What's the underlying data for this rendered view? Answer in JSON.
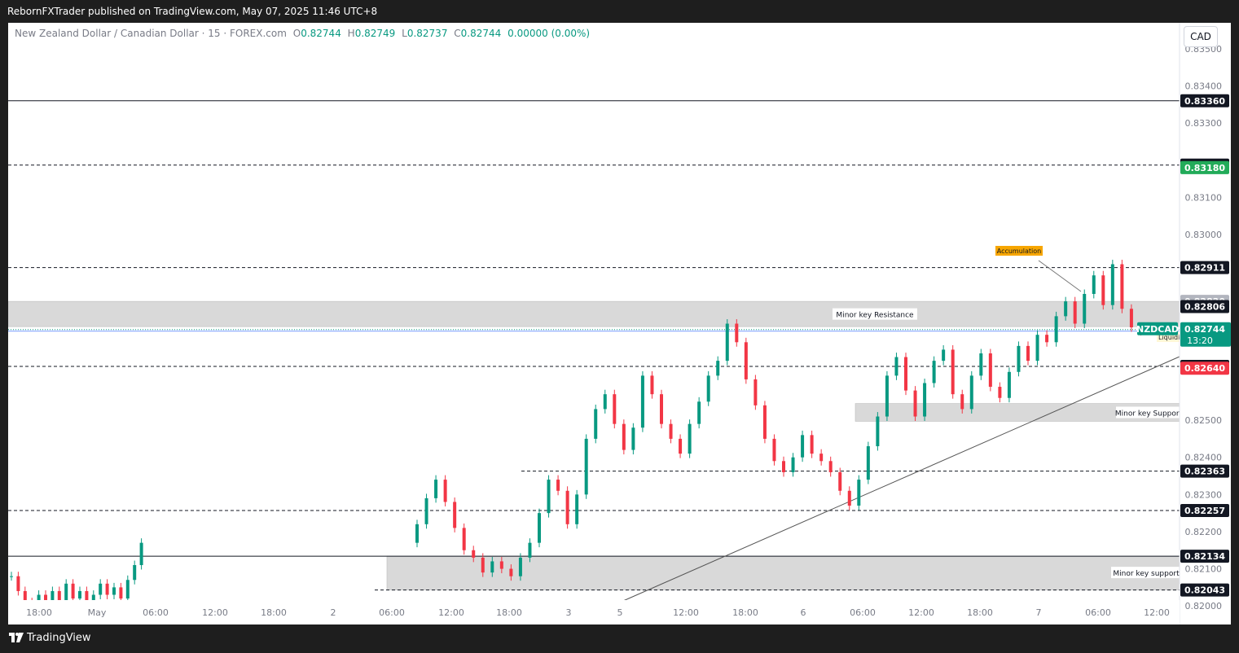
{
  "header": {
    "published": "RebornFXTrader published on TradingView.com, May 07, 2025 11:46 UTC+8"
  },
  "legend": {
    "symbol": "New Zealand Dollar / Canadian Dollar · 15 · FOREX.com",
    "o_label": "O",
    "o": "0.82744",
    "h_label": "H",
    "h": "0.82749",
    "l_label": "L",
    "l": "0.82737",
    "c_label": "C",
    "c": "0.82744",
    "change": "0.00000 (0.00%)"
  },
  "currency_button": "CAD",
  "footer": {
    "brand": "TradingView"
  },
  "colors": {
    "up": "#089981",
    "down": "#f23645",
    "zone": "#d9d9d9",
    "dark_label": "#131722"
  },
  "chart_data": {
    "type": "candlestick",
    "symbol": "NZDCAD",
    "interval": "15",
    "ylim": [
      0.8195,
      0.8357
    ],
    "y_ticks": [
      "0.83500",
      "0.83400",
      "0.83300",
      "0.83100",
      "0.83000",
      "0.82500",
      "0.82400",
      "0.82300",
      "0.82200",
      "0.82100",
      "0.82000"
    ],
    "x_ticks": [
      "18:00",
      "May",
      "06:00",
      "12:00",
      "18:00",
      "2",
      "06:00",
      "12:00",
      "18:00",
      "3",
      "5",
      "12:00",
      "18:00",
      "6",
      "06:00",
      "12:00",
      "18:00",
      "7",
      "06:00",
      "12:00"
    ],
    "price_labels": [
      {
        "value": "0.83360",
        "kind": "dark",
        "price": 0.8336
      },
      {
        "value": "0.83187",
        "kind": "dark",
        "price": 0.83187
      },
      {
        "value": "0.83180",
        "kind": "green",
        "price": 0.8318
      },
      {
        "value": "0.82911",
        "kind": "dark",
        "price": 0.82911
      },
      {
        "value": "0.82820",
        "kind": "gray",
        "price": 0.8282
      },
      {
        "value": "0.82806",
        "kind": "dark",
        "price": 0.82806
      },
      {
        "value": "0.82739",
        "kind": "dark",
        "price": 0.82739
      },
      {
        "value": "0.82645",
        "kind": "dark",
        "price": 0.82645
      },
      {
        "value": "0.82640",
        "kind": "red",
        "price": 0.8264
      },
      {
        "value": "0.82363",
        "kind": "dark",
        "price": 0.82363
      },
      {
        "value": "0.82257",
        "kind": "dark",
        "price": 0.82257
      },
      {
        "value": "0.82134",
        "kind": "dark",
        "price": 0.82134
      },
      {
        "value": "0.82043",
        "kind": "dark",
        "price": 0.82043
      }
    ],
    "current": {
      "symbol": "NZDCAD",
      "price": "0.82744",
      "countdown": "13:20",
      "value": 0.82744
    },
    "horizontal_lines": [
      {
        "price": 0.8336,
        "style": "solid"
      },
      {
        "price": 0.83187,
        "style": "dashed"
      },
      {
        "price": 0.82911,
        "style": "dashed"
      },
      {
        "price": 0.82645,
        "style": "dashed"
      },
      {
        "price": 0.82363,
        "style": "dashed"
      },
      {
        "price": 0.82257,
        "style": "dashed"
      },
      {
        "price": 0.82043,
        "style": "dashed"
      },
      {
        "price": 0.82134,
        "style": "solid"
      }
    ],
    "zones": [
      {
        "label": "Minor key Resistance",
        "top": 0.8282,
        "bottom": 0.82752
      },
      {
        "label": "Minor key Support",
        "top": 0.82545,
        "bottom": 0.82497
      },
      {
        "label": "Minor key support",
        "top": 0.82134,
        "bottom": 0.82043
      }
    ],
    "annotations": [
      {
        "text": "Accumulation"
      },
      {
        "text": "Liquidity"
      }
    ],
    "candles_approx_close": [
      0.8208,
      0.8204,
      0.8201,
      0.8199,
      0.8203,
      0.8201,
      0.8204,
      0.82,
      0.8206,
      0.8202,
      0.8204,
      0.8201,
      0.8203,
      0.8206,
      0.8203,
      0.8205,
      0.8202,
      0.8207,
      0.8211,
      0.8217,
      0.8222,
      0.8229,
      0.8234,
      0.8228,
      0.8221,
      0.8215,
      0.8213,
      0.8209,
      0.8212,
      0.821,
      0.8208,
      0.8213,
      0.8217,
      0.8225,
      0.8234,
      0.8231,
      0.8222,
      0.823,
      0.8245,
      0.8253,
      0.8257,
      0.8249,
      0.8242,
      0.8248,
      0.8262,
      0.8257,
      0.8249,
      0.8245,
      0.8241,
      0.8249,
      0.8255,
      0.8262,
      0.8266,
      0.8276,
      0.8271,
      0.8261,
      0.8254,
      0.8245,
      0.8239,
      0.8236,
      0.824,
      0.8246,
      0.8241,
      0.8239,
      0.8236,
      0.8231,
      0.8227,
      0.8234,
      0.8243,
      0.8251,
      0.8262,
      0.8267,
      0.8258,
      0.8251,
      0.826,
      0.8266,
      0.8269,
      0.8257,
      0.8253,
      0.8262,
      0.8268,
      0.8259,
      0.8256,
      0.8263,
      0.827,
      0.8266,
      0.8273,
      0.8271,
      0.8278,
      0.8282,
      0.8276,
      0.8284,
      0.8289,
      0.8281,
      0.8292,
      0.828,
      0.8275,
      0.8274
    ]
  }
}
